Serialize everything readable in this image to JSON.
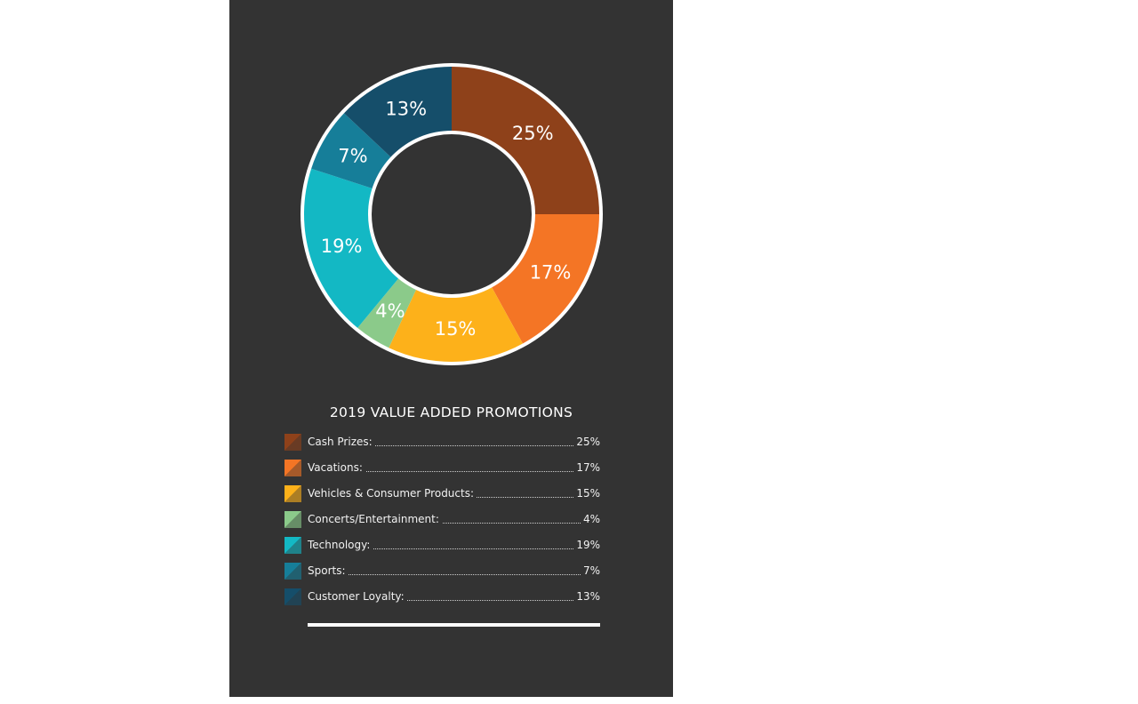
{
  "chart_data": {
    "type": "pie",
    "title": "2019 VALUE ADDED PROMOTIONS",
    "categories": [
      "Cash Prizes",
      "Vacations",
      "Vehicles & Consumer Products",
      "Concerts/Entertainment",
      "Technology",
      "Sports",
      "Customer Loyalty"
    ],
    "values": [
      25,
      17,
      15,
      4,
      19,
      7,
      13
    ],
    "slice_labels": [
      "25%",
      "17%",
      "15%",
      "4%",
      "19%",
      "7%",
      "13%"
    ],
    "colors": [
      "#8e411a",
      "#f47525",
      "#fdb11a",
      "#8bca8a",
      "#13b8c4",
      "#167e99",
      "#154e6a"
    ],
    "hole": "donut"
  },
  "legend": {
    "items": [
      {
        "label": "Cash Prizes:",
        "value": "25%"
      },
      {
        "label": "Vacations:",
        "value": "17%"
      },
      {
        "label": "Vehicles & Consumer Products:",
        "value": "15%"
      },
      {
        "label": "Concerts/Entertainment:",
        "value": "4%"
      },
      {
        "label": "Technology:",
        "value": "19%"
      },
      {
        "label": "Sports:",
        "value": "7%"
      },
      {
        "label": "Customer Loyalty:",
        "value": "13%"
      }
    ]
  }
}
